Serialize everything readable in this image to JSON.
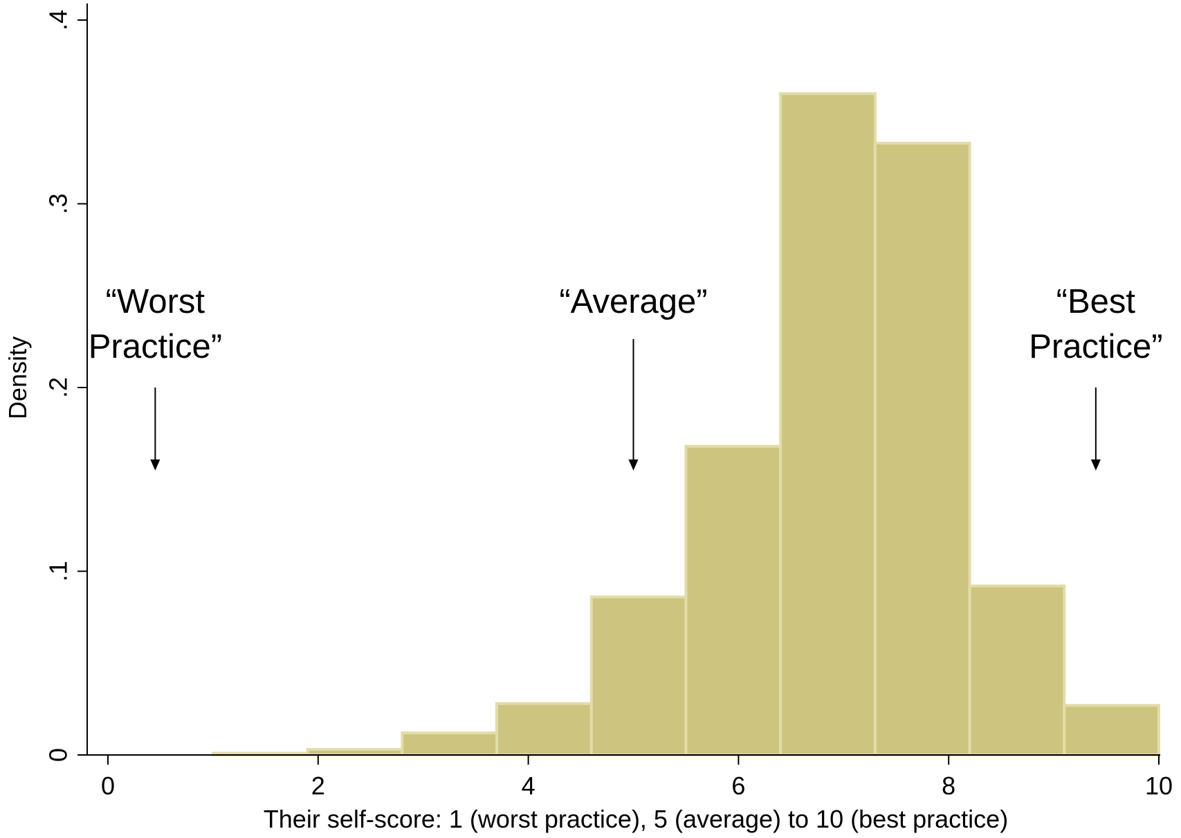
{
  "chart_data": {
    "type": "bar",
    "title": "",
    "xlabel": "Their self-score: 1 (worst practice), 5 (average) to 10 (best practice)",
    "ylabel": "Density",
    "xlim": [
      0,
      10
    ],
    "ylim": [
      0,
      0.4
    ],
    "grid": false,
    "x_ticks": [
      {
        "value": 0,
        "label": "0"
      },
      {
        "value": 2,
        "label": "2"
      },
      {
        "value": 4,
        "label": "4"
      },
      {
        "value": 6,
        "label": "6"
      },
      {
        "value": 8,
        "label": "8"
      },
      {
        "value": 10,
        "label": "10"
      }
    ],
    "y_ticks": [
      {
        "value": 0,
        "label": "0"
      },
      {
        "value": 0.1,
        "label": ".1"
      },
      {
        "value": 0.2,
        "label": ".2"
      },
      {
        "value": 0.3,
        "label": ".3"
      },
      {
        "value": 0.4,
        "label": ".4"
      }
    ],
    "bins": [
      {
        "start": 1.0,
        "end": 1.9,
        "value": 0.001
      },
      {
        "start": 1.9,
        "end": 2.8,
        "value": 0.003
      },
      {
        "start": 2.8,
        "end": 3.7,
        "value": 0.012
      },
      {
        "start": 3.7,
        "end": 4.6,
        "value": 0.028
      },
      {
        "start": 4.6,
        "end": 5.5,
        "value": 0.086
      },
      {
        "start": 5.5,
        "end": 6.4,
        "value": 0.168
      },
      {
        "start": 6.4,
        "end": 7.3,
        "value": 0.36
      },
      {
        "start": 7.3,
        "end": 8.2,
        "value": 0.333
      },
      {
        "start": 8.2,
        "end": 9.1,
        "value": 0.092
      },
      {
        "start": 9.1,
        "end": 10.0,
        "value": 0.027
      }
    ],
    "annotations": [
      {
        "lines": [
          "“Worst",
          "Practice”"
        ],
        "x": 0.45
      },
      {
        "lines": [
          "“Average”"
        ],
        "x": 5.0
      },
      {
        "lines": [
          "“Best",
          "Practice”"
        ],
        "x": 9.4
      }
    ],
    "colors": {
      "bar_fill": "#cdc47f",
      "bar_outline": "#e3dcaa"
    }
  }
}
